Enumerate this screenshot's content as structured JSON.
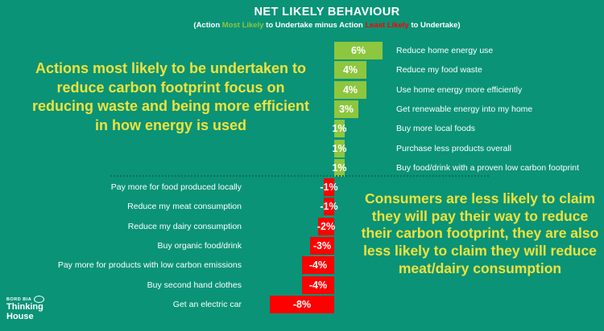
{
  "header": {
    "title": "NET LIKELY BEHAVIOUR",
    "subtitle_parts": {
      "p1": "(Action ",
      "p2": "Most Likely",
      "p3": " to Undertake minus Action ",
      "p4": "Least Likely",
      "p5": " to Undertake)"
    }
  },
  "annotations": {
    "left": "Actions most likely to be undertaken to reduce carbon footprint focus on reducing waste and being more efficient in how energy is used",
    "right": "Consumers are less likely to claim they will pay their way to reduce their carbon footprint, they are also less likely to claim they will reduce meat/dairy consumption"
  },
  "logo": {
    "brand": "BORD BIA",
    "line1": "Thinking",
    "line2": "House"
  },
  "colors": {
    "background": "#0a9377",
    "positive": "#8dc63f",
    "negative": "#fe0000",
    "accent_text": "#efe23d",
    "divider": "#0b6f59",
    "label_text": "#ffffff"
  },
  "chart_data": {
    "type": "bar",
    "orientation": "horizontal-diverging",
    "unit": "%",
    "axis": {
      "zero_baseline": true,
      "grid": false,
      "xlim": [
        -8,
        6
      ]
    },
    "categories": [
      "Reduce home energy use",
      "Reduce my food waste",
      "Use home energy more efficiently",
      "Get renewable energy into my home",
      "Buy more local foods",
      "Purchase less products overall",
      "Buy food/drink with a proven low carbon footprint",
      "Pay more for food produced locally",
      "Reduce my meat consumption",
      "Reduce my dairy consumption",
      "Buy organic food/drink",
      "Pay more for products with low carbon emissions",
      "Buy second hand clothes",
      "Get an electric car"
    ],
    "values": [
      6,
      4,
      4,
      3,
      1,
      1,
      1,
      -1,
      -1,
      -2,
      -3,
      -4,
      -4,
      -8
    ],
    "labels": [
      "6%",
      "4%",
      "4%",
      "3%",
      "1%",
      "1%",
      "1%",
      "-1%",
      "-1%",
      "-2%",
      "-3%",
      "-4%",
      "-4%",
      "-8%"
    ]
  }
}
